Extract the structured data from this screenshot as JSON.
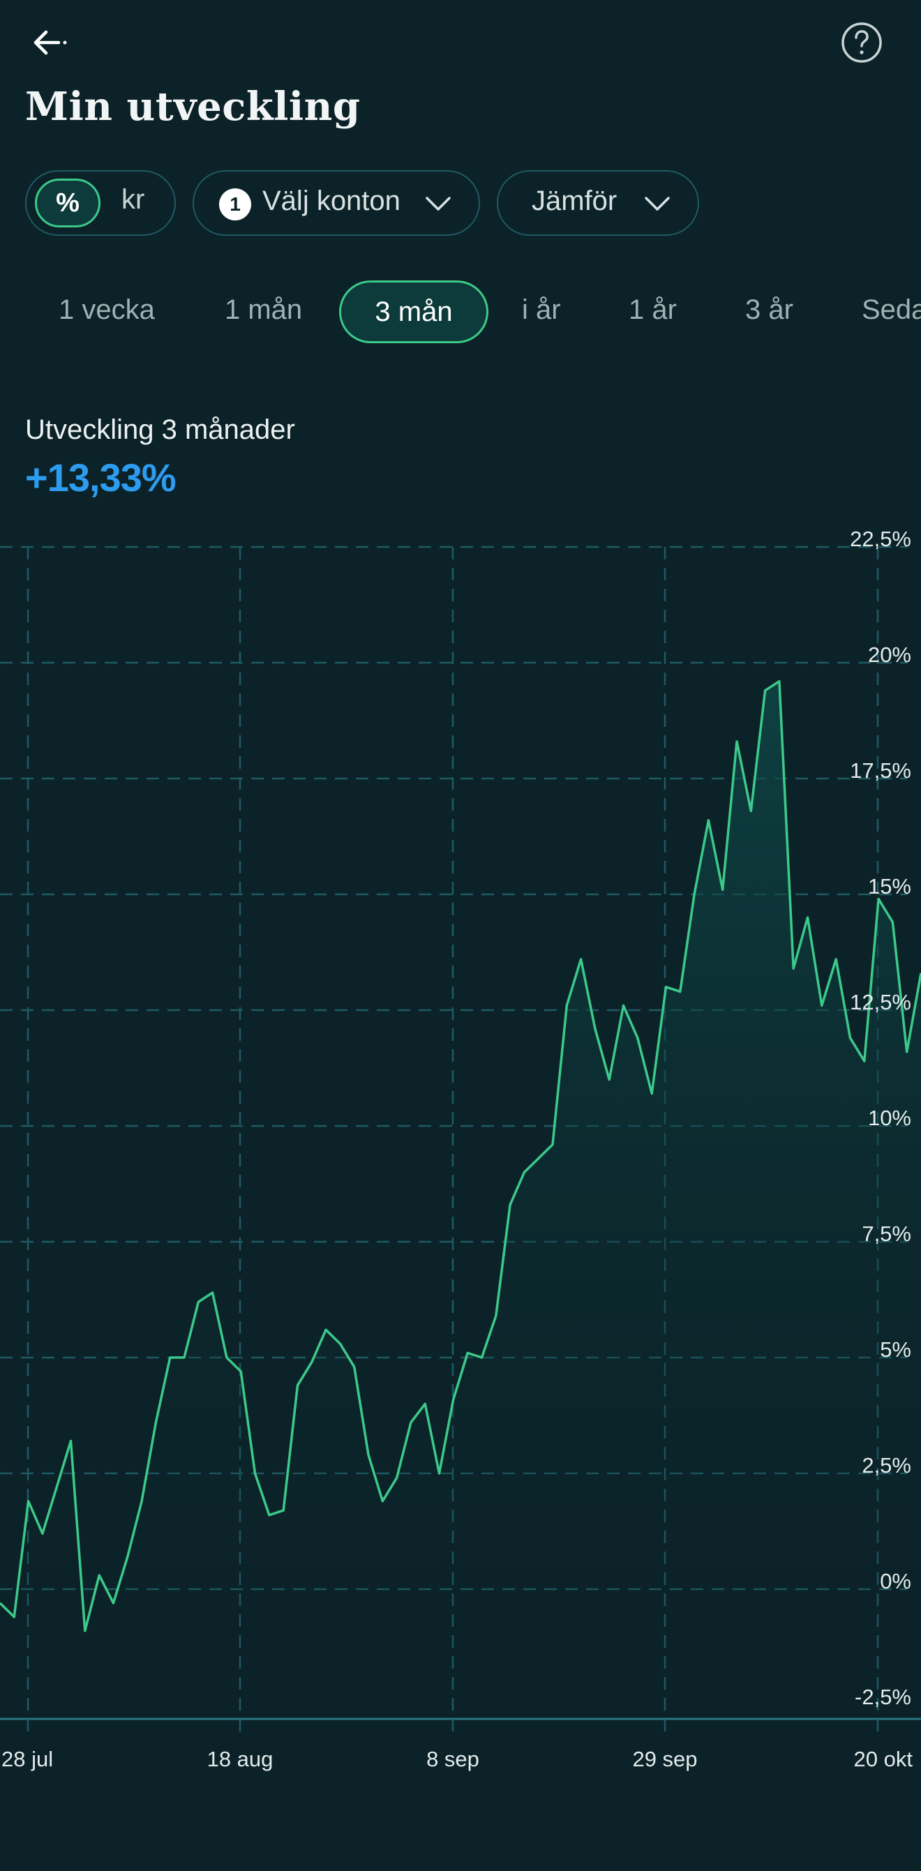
{
  "header": {
    "title": "Min utveckling"
  },
  "filters": {
    "unit_percent": "%",
    "unit_kr": "kr",
    "accounts_count": "1",
    "accounts_label": "Välj konton",
    "compare_label": "Jämför"
  },
  "periods": [
    {
      "label": "1 vecka",
      "active": false
    },
    {
      "label": "1 mån",
      "active": false
    },
    {
      "label": "3 mån",
      "active": true
    },
    {
      "label": "i år",
      "active": false
    },
    {
      "label": "1 år",
      "active": false
    },
    {
      "label": "3 år",
      "active": false
    },
    {
      "label": "Sedan start",
      "active": false
    }
  ],
  "summary": {
    "label": "Utveckling 3 månader",
    "value": "+13,33%"
  },
  "colors": {
    "background": "#0b2228",
    "line": "#3cc98a",
    "grid": "#1f5a64",
    "value": "#2d9cf0"
  },
  "chart_data": {
    "type": "area",
    "title": "",
    "xlabel": "",
    "ylabel": "",
    "ylim": [
      -2.5,
      22.5
    ],
    "y_ticks": [
      "22,5%",
      "20%",
      "17,5%",
      "15%",
      "12,5%",
      "10%",
      "7,5%",
      "5%",
      "2,5%",
      "0%",
      "-2,5%"
    ],
    "x_ticks": [
      "28 jul",
      "18 aug",
      "8 sep",
      "29 sep",
      "20 okt"
    ],
    "grid": true,
    "legend": "none",
    "series": [
      {
        "name": "",
        "values": [
          -0.3,
          -0.6,
          1.9,
          1.2,
          2.2,
          3.2,
          -0.9,
          0.3,
          -0.3,
          0.7,
          1.9,
          3.6,
          5.0,
          5.0,
          6.2,
          6.4,
          5.0,
          4.7,
          2.5,
          1.6,
          1.7,
          4.4,
          4.9,
          5.6,
          5.3,
          4.8,
          2.9,
          1.9,
          2.4,
          3.6,
          4.0,
          2.5,
          4.1,
          5.1,
          5.0,
          5.9,
          8.3,
          9.0,
          9.3,
          9.6,
          12.6,
          13.6,
          12.1,
          11.0,
          12.6,
          11.9,
          10.7,
          13.0,
          12.9,
          15.0,
          16.6,
          15.1,
          18.3,
          16.8,
          19.4,
          19.6,
          13.4,
          14.5,
          12.6,
          13.6,
          11.9,
          11.4,
          14.9,
          14.4,
          11.6,
          13.3
        ]
      }
    ]
  }
}
